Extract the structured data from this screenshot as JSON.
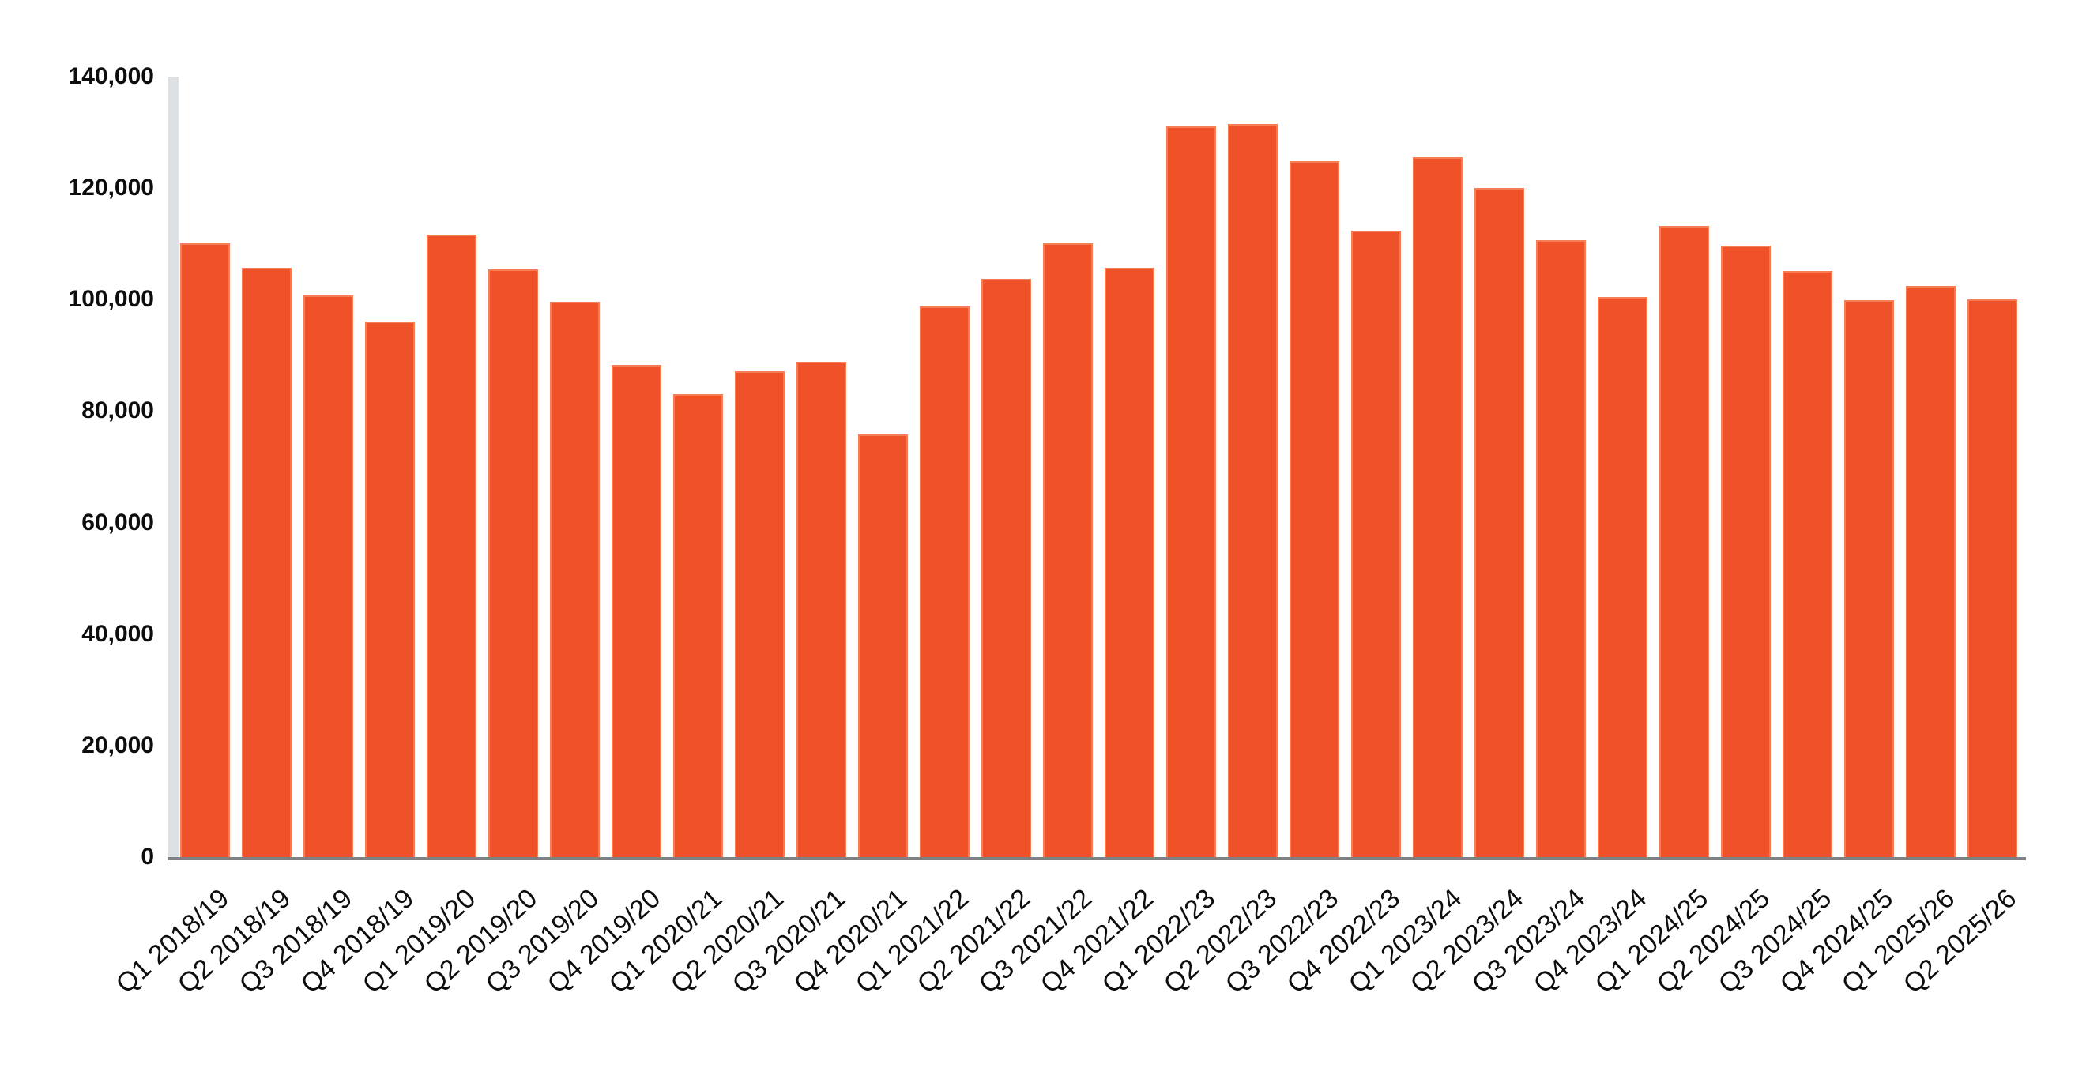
{
  "chart_data": {
    "type": "bar",
    "title": "",
    "xlabel": "",
    "ylabel": "",
    "categories": [
      "Q1 2018/19",
      "Q2 2018/19",
      "Q3 2018/19",
      "Q4 2018/19",
      "Q1 2019/20",
      "Q2 2019/20",
      "Q3 2019/20",
      "Q4 2019/20",
      "Q1 2020/21",
      "Q2 2020/21",
      "Q3 2020/21",
      "Q4 2020/21",
      "Q1 2021/22",
      "Q2 2021/22",
      "Q3 2021/22",
      "Q4 2021/22",
      "Q1 2022/23",
      "Q2 2022/23",
      "Q3 2022/23",
      "Q4 2022/23",
      "Q1 2023/24",
      "Q2 2023/24",
      "Q3 2023/24",
      "Q4 2023/24",
      "Q1 2024/25",
      "Q2 2024/25",
      "Q3 2024/25",
      "Q4 2024/25",
      "Q1 2025/26",
      "Q2 2025/26"
    ],
    "values": [
      110100,
      105700,
      100700,
      96100,
      111700,
      105400,
      99600,
      88300,
      83000,
      87100,
      88900,
      75800,
      98800,
      103700,
      110100,
      105700,
      131100,
      131500,
      124800,
      112300,
      125500,
      120000,
      110700,
      100400,
      113200,
      109700,
      105100,
      99900,
      102500,
      100000
    ],
    "ylim": [
      0,
      140000
    ],
    "ytick_step": 20000,
    "ytick_labels": [
      "0",
      "20,000",
      "40,000",
      "60,000",
      "80,000",
      "100,000",
      "120,000",
      "140,000"
    ],
    "grid": false,
    "legend": "none",
    "x_tick_rotation_deg": 42,
    "colors": {
      "bar_fill": "#EF5129",
      "bar_edge": "#F47E55",
      "y_axis_bar": "#DDE1E4",
      "baseline": "#7F8285",
      "text": "#0D0D0D",
      "background": "#FFFFFF"
    }
  }
}
